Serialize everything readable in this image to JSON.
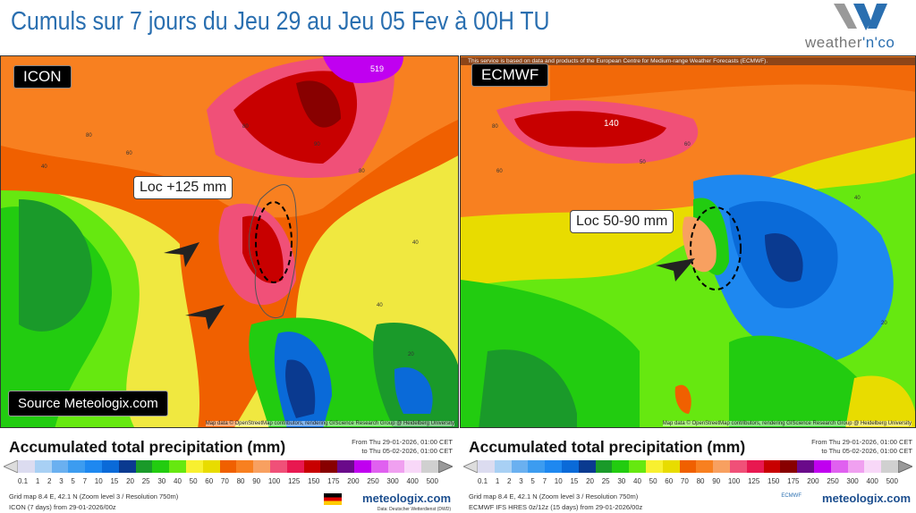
{
  "title": "Cumuls sur 7 jours du Jeu 29 au Jeu 05 Fev à 00H TU",
  "logo": {
    "text_a": "weather",
    "text_b": "'n'co"
  },
  "left": {
    "model": "ICON",
    "callout": "Loc +125 mm",
    "source": "Source Meteologix.com",
    "map_values": [
      "519",
      "40",
      "80",
      "90",
      "40",
      "60",
      "80",
      "80",
      "40",
      "20"
    ],
    "attribution": "Map data © OpenStreetMap contributors, rendering GIScience Research Group @ Heidelberg University",
    "legend": {
      "title": "Accumulated total precipitation (mm)",
      "from": "From Thu 29-01-2026, 01:00 CET",
      "to": "to Thu 05-02-2026, 01:00 CET",
      "grid": "Grid map 8.4 E, 42.1 N (Zoom level 3 / Resolution 750m)",
      "run": "ICON (7 days) from 29-01-2026/00z",
      "brand": "meteologix.com",
      "credit": "Data: Deutscher Wetterdienst (DWD)"
    }
  },
  "right": {
    "model": "ECMWF",
    "callout": "Loc 50-90 mm",
    "map_values": [
      "140",
      "60",
      "80",
      "50",
      "60",
      "40",
      "20"
    ],
    "top_attribution": "This service is based on data and products of the European Centre for Medium-range Weather Forecasts (ECMWF).",
    "attribution": "Map data © OpenStreetMap contributors, rendering GIScience Research Group @ Heidelberg University",
    "legend": {
      "title": "Accumulated total precipitation (mm)",
      "from": "From Thu 29-01-2026, 01:00 CET",
      "to": "to Thu 05-02-2026, 01:00 CET",
      "grid": "Grid map 8.4 E, 42.1 N (Zoom level 3 / Resolution 750m)",
      "run": "ECMWF IFS HRES 0z/12z (15 days) from 29-01-2026/00z",
      "brand": "meteologix.com",
      "ecmwf": "ECMWF"
    }
  },
  "scale": {
    "ticks": [
      "0.1",
      "1",
      "2",
      "3",
      "5",
      "7",
      "10",
      "15",
      "20",
      "25",
      "30",
      "40",
      "50",
      "60",
      "70",
      "80",
      "90",
      "100",
      "125",
      "150",
      "175",
      "200",
      "250",
      "300",
      "400",
      "500"
    ],
    "colors": [
      "#dcdcf0",
      "#a8d0f4",
      "#6ab0f0",
      "#3c9cf0",
      "#1e88f0",
      "#0a6ad8",
      "#0a3a90",
      "#1a9a2a",
      "#22cc10",
      "#66e810",
      "#f8f030",
      "#e8dc00",
      "#f06000",
      "#f88020",
      "#f8a060",
      "#f05078",
      "#e81850",
      "#c80000",
      "#880000",
      "#6a0a8a",
      "#c000f0",
      "#e060f0",
      "#f0a0f0",
      "#f8d8f8",
      "#d0d0d0"
    ]
  }
}
